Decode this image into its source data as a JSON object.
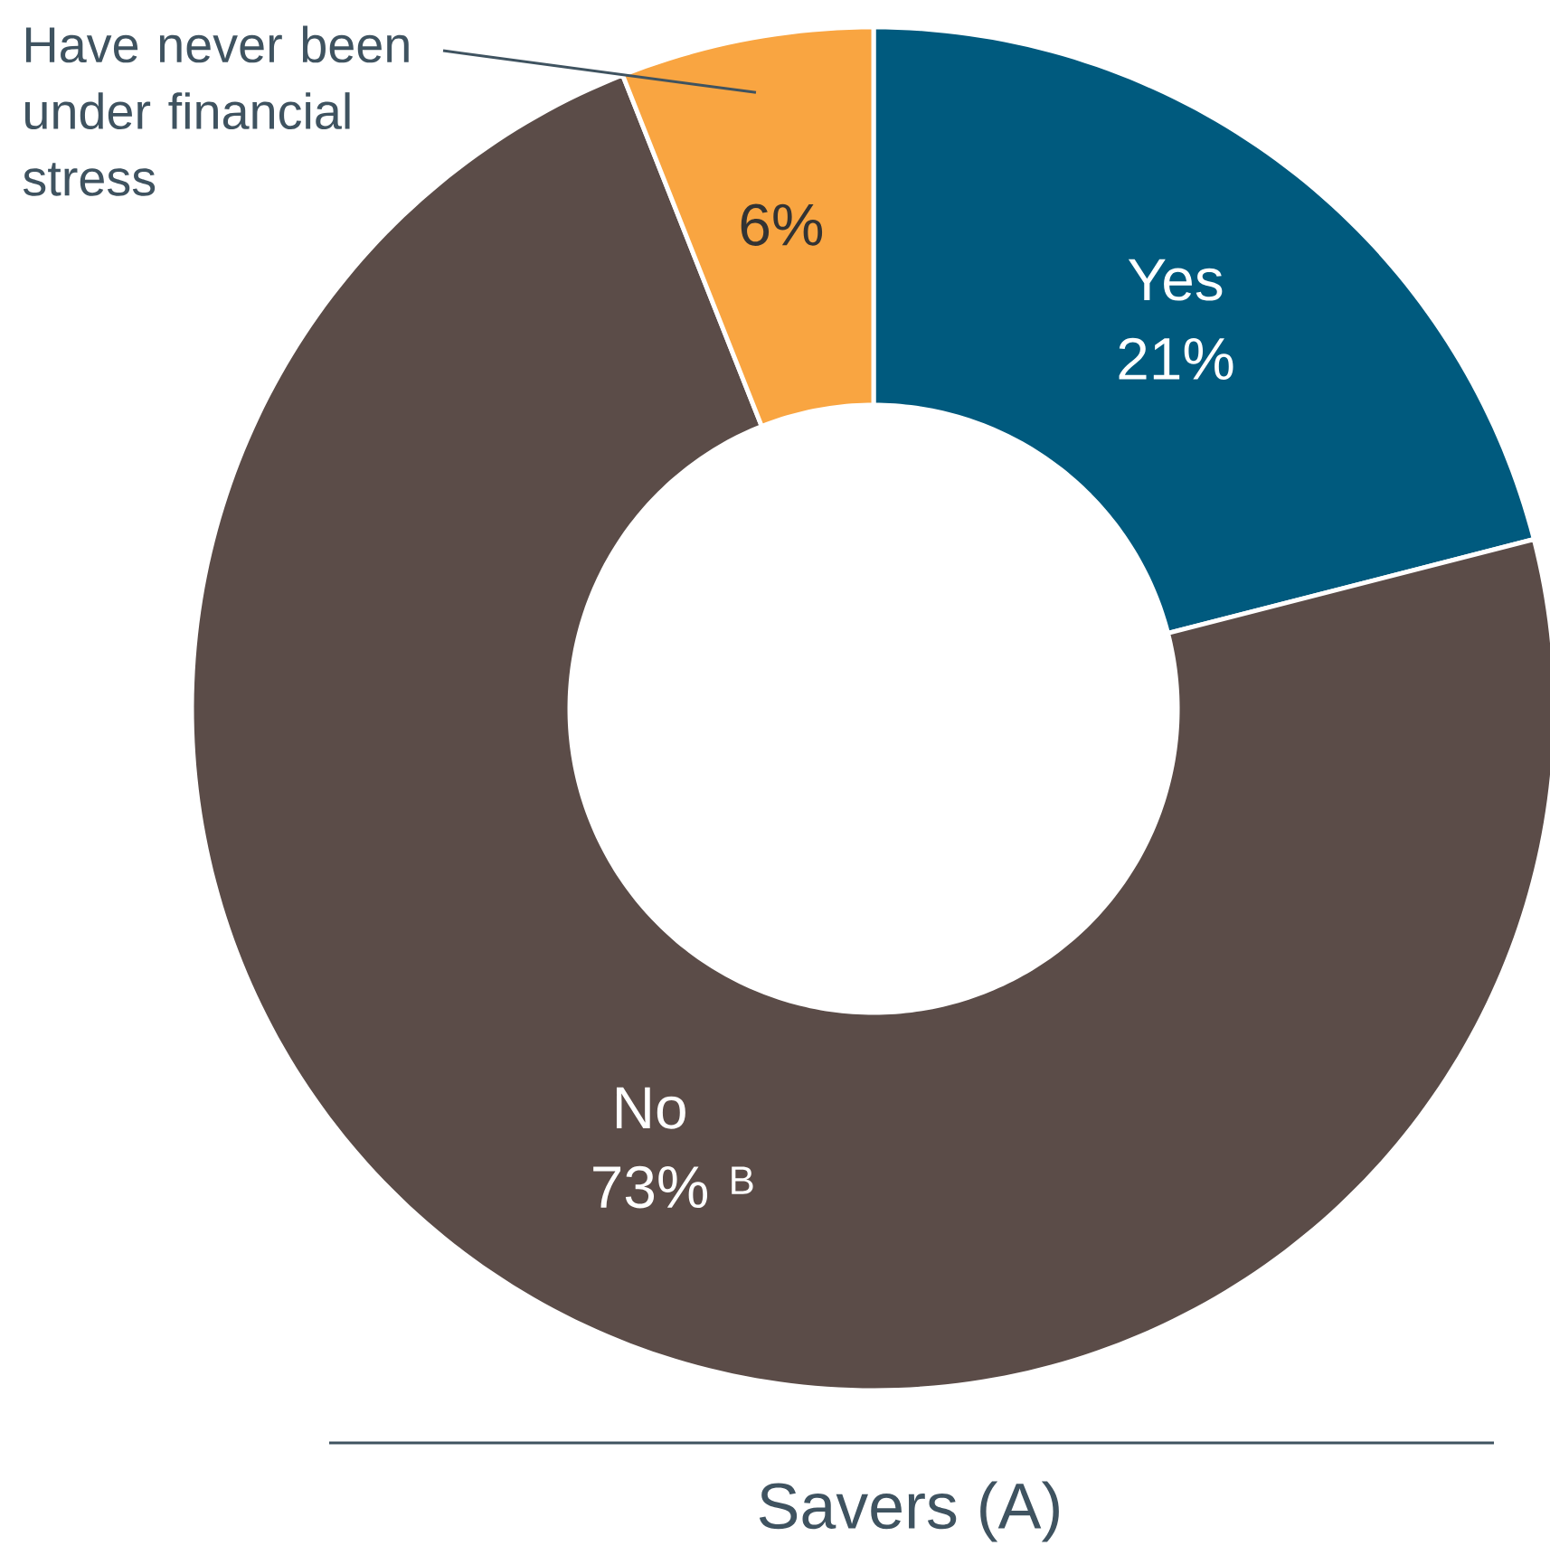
{
  "chart_data": {
    "type": "donut",
    "title": "Savers (A)",
    "categories": [
      "Yes",
      "No",
      "Have never been under financial stress"
    ],
    "values": [
      21,
      73,
      6
    ],
    "value_labels": [
      "21%",
      "73%",
      "6%"
    ],
    "colors": [
      "#005a7e",
      "#5b4c48",
      "#f9a541"
    ],
    "annotations": [
      "B"
    ]
  }
}
